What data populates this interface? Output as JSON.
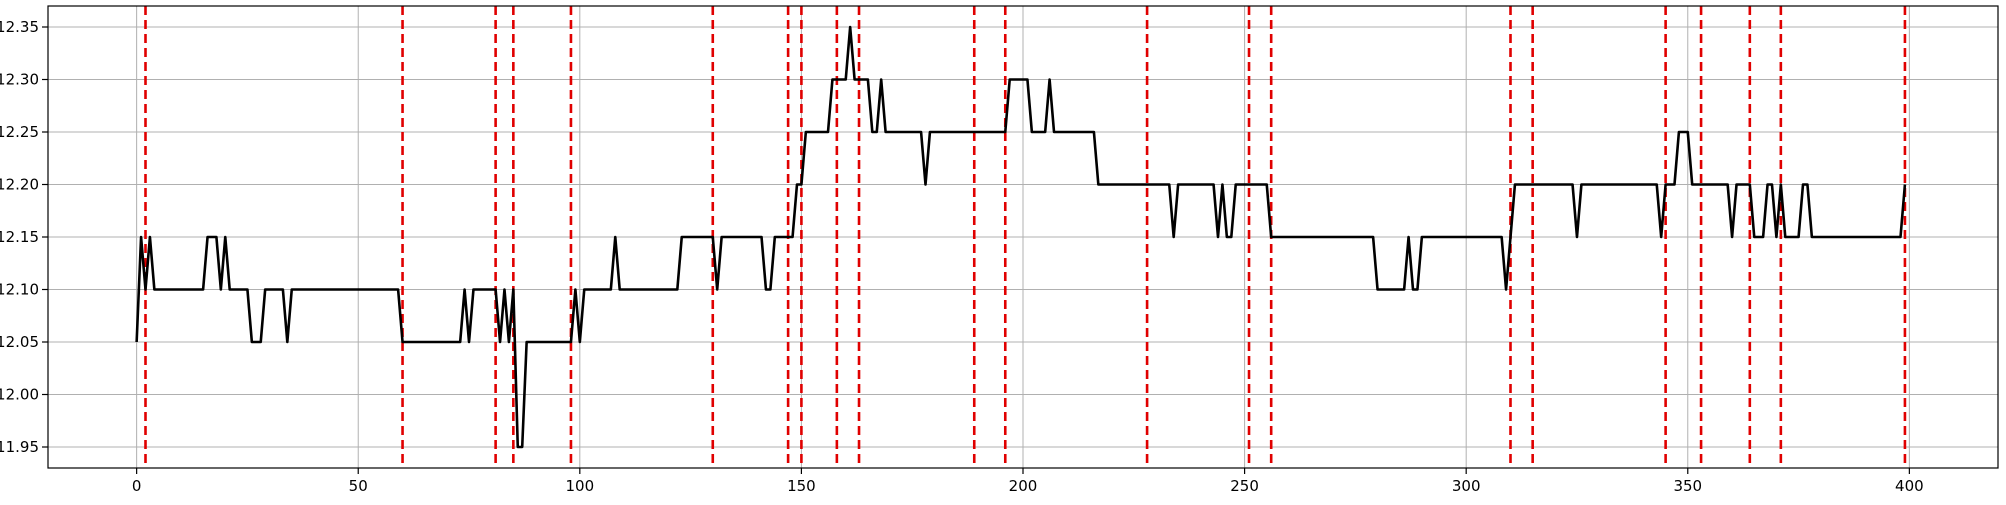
{
  "chart_data": {
    "type": "line",
    "title": "",
    "xlabel": "",
    "ylabel": "",
    "xlim": [
      -20,
      420
    ],
    "ylim": [
      11.93,
      12.37
    ],
    "x_ticks": [
      0,
      50,
      100,
      150,
      200,
      250,
      300,
      350,
      400
    ],
    "y_ticks": [
      11.95,
      12.0,
      12.05,
      12.1,
      12.15,
      12.2,
      12.25,
      12.3,
      12.35
    ],
    "y_tick_labels": [
      "11.95",
      "12.00",
      "12.05",
      "12.10",
      "12.15",
      "12.20",
      "12.25",
      "12.30",
      "12.35"
    ],
    "grid": true,
    "colors": {
      "series": "#000000",
      "markers": "#e00000",
      "grid": "#b0b0b0"
    },
    "series": [
      {
        "points": [
          [
            0,
            12.05
          ],
          [
            1,
            12.15
          ],
          [
            2,
            12.1
          ],
          [
            3,
            12.15
          ],
          [
            4,
            12.1
          ],
          [
            15,
            12.1
          ],
          [
            16,
            12.15
          ],
          [
            18,
            12.15
          ],
          [
            19,
            12.1
          ],
          [
            20,
            12.15
          ],
          [
            21,
            12.1
          ],
          [
            25,
            12.1
          ],
          [
            26,
            12.05
          ],
          [
            28,
            12.05
          ],
          [
            29,
            12.1
          ],
          [
            33,
            12.1
          ],
          [
            34,
            12.05
          ],
          [
            35,
            12.1
          ],
          [
            59,
            12.1
          ],
          [
            60,
            12.05
          ],
          [
            73,
            12.05
          ],
          [
            74,
            12.1
          ],
          [
            75,
            12.05
          ],
          [
            76,
            12.1
          ],
          [
            81,
            12.1
          ],
          [
            82,
            12.05
          ],
          [
            83,
            12.1
          ],
          [
            84,
            12.05
          ],
          [
            85,
            12.1
          ],
          [
            86,
            11.95
          ],
          [
            87,
            11.95
          ],
          [
            88,
            12.05
          ],
          [
            98,
            12.05
          ],
          [
            99,
            12.1
          ],
          [
            100,
            12.05
          ],
          [
            101,
            12.1
          ],
          [
            107,
            12.1
          ],
          [
            108,
            12.15
          ],
          [
            109,
            12.1
          ],
          [
            122,
            12.1
          ],
          [
            123,
            12.15
          ],
          [
            130,
            12.15
          ],
          [
            131,
            12.1
          ],
          [
            132,
            12.15
          ],
          [
            141,
            12.15
          ],
          [
            142,
            12.1
          ],
          [
            143,
            12.1
          ],
          [
            144,
            12.15
          ],
          [
            148,
            12.15
          ],
          [
            149,
            12.2
          ],
          [
            150,
            12.2
          ],
          [
            151,
            12.25
          ],
          [
            156,
            12.25
          ],
          [
            157,
            12.3
          ],
          [
            160,
            12.3
          ],
          [
            161,
            12.35
          ],
          [
            162,
            12.3
          ],
          [
            165,
            12.3
          ],
          [
            166,
            12.25
          ],
          [
            167,
            12.25
          ],
          [
            168,
            12.3
          ],
          [
            169,
            12.25
          ],
          [
            177,
            12.25
          ],
          [
            178,
            12.2
          ],
          [
            179,
            12.25
          ],
          [
            196,
            12.25
          ],
          [
            197,
            12.3
          ],
          [
            201,
            12.3
          ],
          [
            202,
            12.25
          ],
          [
            205,
            12.25
          ],
          [
            206,
            12.3
          ],
          [
            207,
            12.25
          ],
          [
            216,
            12.25
          ],
          [
            217,
            12.2
          ],
          [
            233,
            12.2
          ],
          [
            234,
            12.15
          ],
          [
            235,
            12.2
          ],
          [
            243,
            12.2
          ],
          [
            244,
            12.15
          ],
          [
            245,
            12.2
          ],
          [
            246,
            12.15
          ],
          [
            247,
            12.15
          ],
          [
            248,
            12.2
          ],
          [
            255,
            12.2
          ],
          [
            256,
            12.15
          ],
          [
            279,
            12.15
          ],
          [
            280,
            12.1
          ],
          [
            286,
            12.1
          ],
          [
            287,
            12.15
          ],
          [
            288,
            12.1
          ],
          [
            289,
            12.1
          ],
          [
            290,
            12.15
          ],
          [
            308,
            12.15
          ],
          [
            309,
            12.1
          ],
          [
            310,
            12.15
          ],
          [
            311,
            12.2
          ],
          [
            324,
            12.2
          ],
          [
            325,
            12.15
          ],
          [
            326,
            12.2
          ],
          [
            343,
            12.2
          ],
          [
            344,
            12.15
          ],
          [
            345,
            12.2
          ],
          [
            347,
            12.2
          ],
          [
            348,
            12.25
          ],
          [
            350,
            12.25
          ],
          [
            351,
            12.2
          ],
          [
            359,
            12.2
          ],
          [
            360,
            12.15
          ],
          [
            361,
            12.2
          ],
          [
            364,
            12.2
          ],
          [
            365,
            12.15
          ],
          [
            367,
            12.15
          ],
          [
            368,
            12.2
          ],
          [
            369,
            12.2
          ],
          [
            370,
            12.15
          ],
          [
            371,
            12.2
          ],
          [
            372,
            12.15
          ],
          [
            375,
            12.15
          ],
          [
            376,
            12.2
          ],
          [
            377,
            12.2
          ],
          [
            378,
            12.15
          ],
          [
            398,
            12.15
          ],
          [
            399,
            12.2
          ]
        ]
      }
    ],
    "vertical_markers": [
      2,
      60,
      81,
      85,
      98,
      130,
      147,
      150,
      158,
      163,
      189,
      196,
      228,
      251,
      256,
      310,
      315,
      345,
      353,
      364,
      371,
      399
    ],
    "legend": "none"
  }
}
